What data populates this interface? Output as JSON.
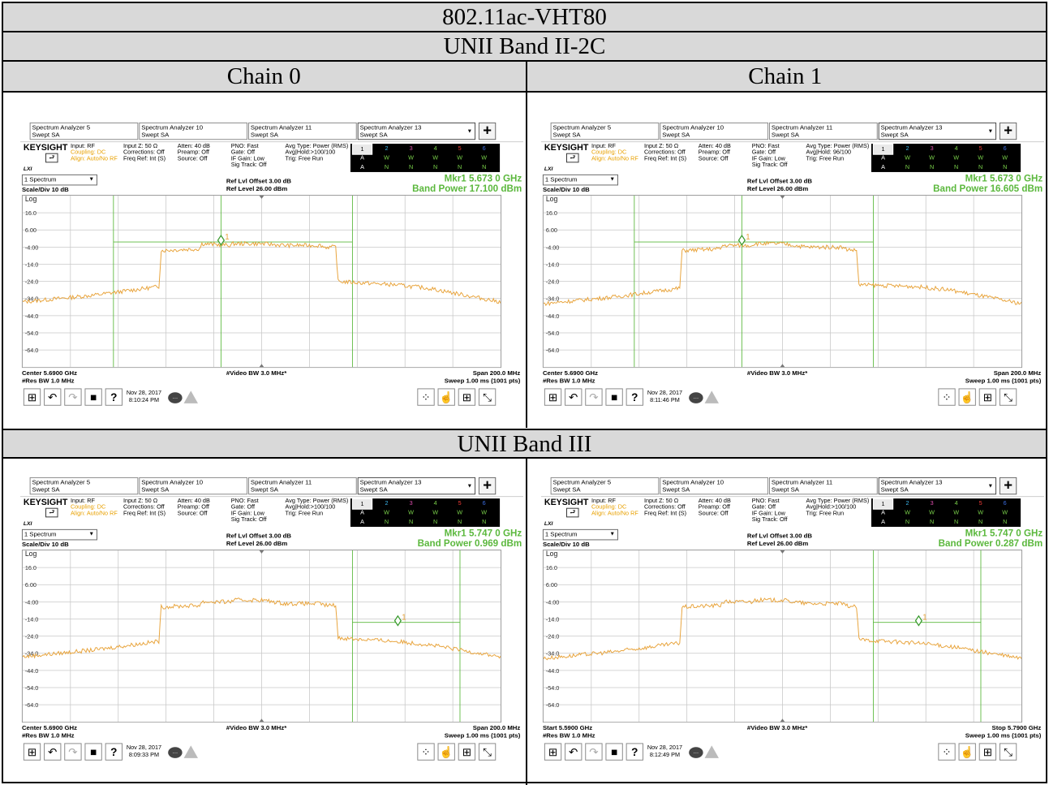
{
  "title": "802.11ac-VHT80",
  "sections": [
    {
      "name": "UNII Band II-2C"
    },
    {
      "name": "UNII Band III"
    }
  ],
  "chains": [
    "Chain 0",
    "Chain 1"
  ],
  "analyzer_common": {
    "tabs": [
      {
        "line1": "Spectrum Analyzer 5",
        "line2": "Swept SA"
      },
      {
        "line1": "Spectrum Analyzer 10",
        "line2": "Swept SA"
      },
      {
        "line1": "Spectrum Analyzer 11",
        "line2": "Swept SA"
      },
      {
        "line1": "Spectrum Analyzer 13",
        "line2": "Swept SA"
      }
    ],
    "brand": "KEYSIGHT",
    "lxi": "LXI",
    "input": "Input: RF",
    "coupling": "Coupling: DC",
    "align": "Align: Auto/No RF",
    "input_z": "Input Z: 50 Ω",
    "corrections": "Corrections: Off",
    "freq_ref": "Freq Ref: Int (S)",
    "atten": "Atten: 40 dB",
    "preamp": "Preamp: Off",
    "source": "Source: Off",
    "pno": "PNO: Fast",
    "gate": "Gate: Off",
    "if_gain": "IF Gain: Low",
    "sig_track": "Sig Track: Off",
    "avg_type": "Avg Type: Power (RMS)",
    "trig": "Trig: Free Run",
    "trace_nums": [
      "1",
      "2",
      "3",
      "4",
      "5",
      "6"
    ],
    "trace_types": [
      "A",
      "W",
      "W",
      "W",
      "W",
      "W"
    ],
    "trace_dets": [
      "A",
      "N",
      "N",
      "N",
      "N",
      "N"
    ],
    "trace_colors": [
      "#000000",
      "#3bb4e8",
      "#e04fb0",
      "#7ad14a",
      "#ef3b36",
      "#3b6de0"
    ],
    "view": "1 Spectrum",
    "scale": "Scale/Div 10 dB",
    "log": "Log",
    "ref_offset": "Ref Lvl Offset 3.00 dB",
    "ref_level": "Ref Level 26.00 dBm",
    "y_ticks": [
      "16.0",
      "6.00",
      "-4.00",
      "-14.0",
      "-24.0",
      "-34.0",
      "-44.0",
      "-54.0",
      "-64.0"
    ],
    "vbw": "#Video BW 3.0 MHz*",
    "rbw": "#Res BW 1.0 MHz",
    "sweep": "Sweep 1.00 ms (1001 pts)",
    "date": "Nov 28, 2017"
  },
  "panels": [
    {
      "id": "b2-c0",
      "tab2": "Swept SA",
      "avg_hold": "Avg|Hold:>100/100",
      "marker": "Mkr1  5.673 0 GHz",
      "band_power": "Band Power 17.100 dBm",
      "start": "Center 5.6900 GHz",
      "stop": "Span 200.0 MHz",
      "time": "8:10:24 PM",
      "marker_label": "1"
    },
    {
      "id": "b2-c1",
      "tab2": "Swept SA",
      "avg_hold": "Avg|Hold: 96/100",
      "marker": "Mkr1  5.673 0 GHz",
      "band_power": "Band Power 16.605 dBm",
      "start": "Center 5.6900 GHz",
      "stop": "Span 200.0 MHz",
      "time": "8:11:46 PM",
      "marker_label": "1"
    },
    {
      "id": "b3-c0",
      "tab2": "Swept SA",
      "avg_hold": "Avg|Hold:>100/100",
      "marker": "Mkr1  5.747 0 GHz",
      "band_power": "Band Power 0.969 dBm",
      "start": "Center 5.6900 GHz",
      "stop": "Span 200.0 MHz",
      "time": "8:09:33 PM",
      "marker_label": "1"
    },
    {
      "id": "b3-c1",
      "tab2": "Swept SA",
      "avg_hold": "Avg|Hold:>100/100",
      "marker": "Mkr1  5.747 0 GHz",
      "band_power": "Band Power 0.287 dBm",
      "start": "Start 5.5900 GHz",
      "stop": "Stop 5.7900 GHz",
      "time": "8:12:49 PM",
      "marker_label": "1"
    }
  ],
  "chart_data": [
    {
      "type": "line",
      "title": "",
      "xlabel": "",
      "ylabel": "dBm",
      "ylim": [
        -74,
        26
      ],
      "series": [
        {
          "color": "#e8a33a",
          "x_mhz": [
            0,
            30,
            57,
            58,
            74,
            75,
            87,
            88,
            100,
            110,
            125,
            126,
            131,
            132,
            156,
            170,
            200
          ],
          "y_dbm": [
            -36,
            -32,
            -27,
            -6,
            -5,
            -2,
            -3,
            -2,
            -2,
            -3,
            -3,
            -4,
            -4,
            -24,
            -26,
            -28,
            -36
          ]
        }
      ],
      "band_markers_mhz": [
        38,
        83,
        138
      ],
      "marker": {
        "x_mhz": 83,
        "y_dbm": 0
      }
    },
    {
      "type": "line",
      "title": "",
      "xlabel": "",
      "ylabel": "dBm",
      "ylim": [
        -74,
        26
      ],
      "series": [
        {
          "color": "#e8a33a",
          "x_mhz": [
            0,
            30,
            57,
            58,
            74,
            75,
            87,
            88,
            100,
            110,
            125,
            126,
            131,
            132,
            156,
            170,
            200
          ],
          "y_dbm": [
            -37,
            -33,
            -28,
            -6,
            -5,
            -3,
            -3,
            -2,
            -2,
            -4,
            -4,
            -5,
            -6,
            -26,
            -27,
            -29,
            -37
          ]
        }
      ],
      "band_markers_mhz": [
        38,
        83,
        138
      ],
      "marker": {
        "x_mhz": 83,
        "y_dbm": 0
      }
    },
    {
      "type": "line",
      "title": "",
      "xlabel": "",
      "ylabel": "dBm",
      "ylim": [
        -74,
        26
      ],
      "series": [
        {
          "color": "#e8a33a",
          "x_mhz": [
            0,
            30,
            57,
            58,
            74,
            75,
            87,
            88,
            100,
            110,
            125,
            126,
            131,
            132,
            156,
            170,
            200
          ],
          "y_dbm": [
            -36,
            -32,
            -27,
            -7,
            -6,
            -4,
            -4,
            -3,
            -3,
            -5,
            -5,
            -6,
            -6,
            -25,
            -27,
            -29,
            -36
          ]
        }
      ],
      "band_markers_mhz": [
        138,
        183
      ],
      "marker": {
        "x_mhz": 157,
        "y_dbm": -15
      }
    },
    {
      "type": "line",
      "title": "",
      "xlabel": "",
      "ylabel": "dBm",
      "ylim": [
        -74,
        26
      ],
      "series": [
        {
          "color": "#e8a33a",
          "x_mhz": [
            0,
            30,
            57,
            58,
            74,
            75,
            87,
            88,
            100,
            110,
            125,
            126,
            131,
            132,
            156,
            170,
            200
          ],
          "y_dbm": [
            -37,
            -33,
            -28,
            -7,
            -6,
            -4,
            -4,
            -3,
            -3,
            -5,
            -5,
            -6,
            -7,
            -26,
            -28,
            -30,
            -37
          ]
        }
      ],
      "band_markers_mhz": [
        138,
        183
      ],
      "marker": {
        "x_mhz": 157,
        "y_dbm": -15
      }
    }
  ]
}
